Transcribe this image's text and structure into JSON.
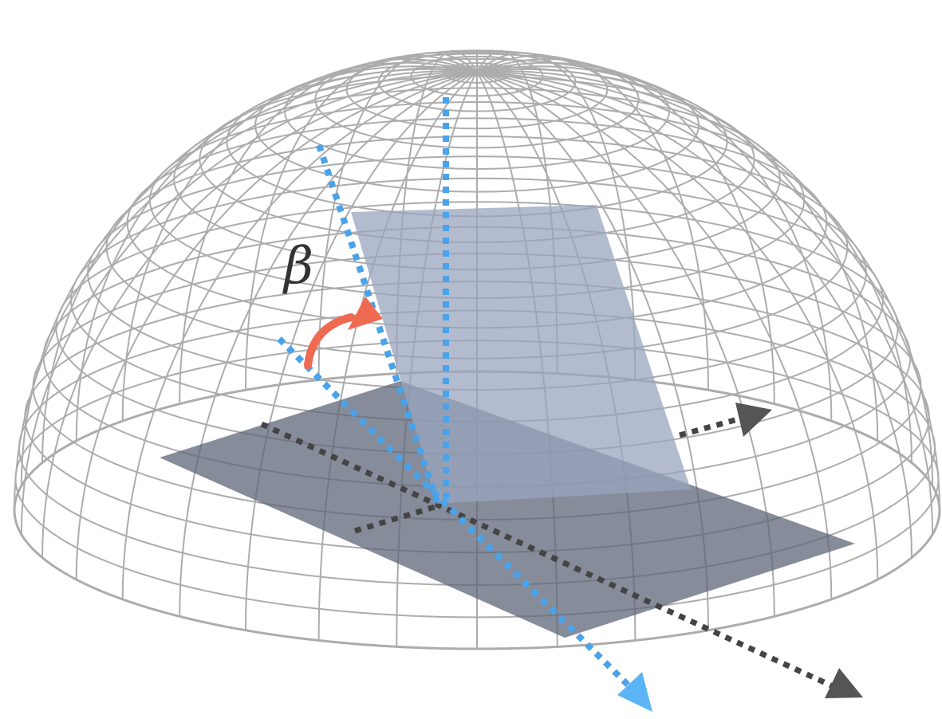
{
  "angle_label": "β",
  "colors": {
    "grid": "#8a8a8a",
    "ground_plane": "#5d6678",
    "tilted_plane": "#98a6bd",
    "blue_axis": "#4aa3ea",
    "blue_arrow": "#5ab4f5",
    "dark_axis": "#444444",
    "dark_arrow": "#555555",
    "angle_arrow": "#ef6a50",
    "label": "#333333"
  },
  "icons": {
    "arrowhead": "triangle"
  }
}
